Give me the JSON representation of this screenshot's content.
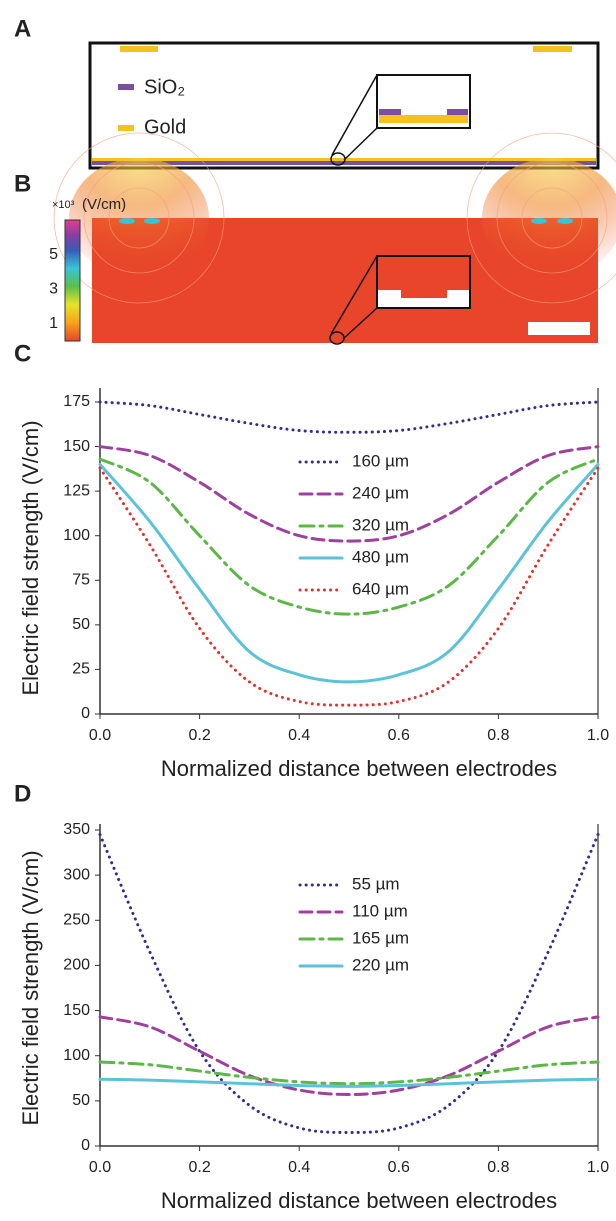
{
  "figure": {
    "panel_labels": [
      "A",
      "B",
      "C",
      "D"
    ],
    "panel_a": {
      "legend": [
        "SiO₂",
        "Gold"
      ]
    },
    "panel_b": {
      "colorbar_scale": "×10³",
      "colorbar_unit": "(V/cm)",
      "colorbar_lim": [
        0,
        7
      ],
      "colorbar_ticks": [
        1,
        3,
        5
      ]
    }
  },
  "chart_data": [
    {
      "type": "line",
      "xlabel": "Normalized distance between electrodes",
      "ylabel": "Electric field strength (V/cm)",
      "x": [
        0,
        0.1,
        0.2,
        0.3,
        0.4,
        0.5,
        0.6,
        0.7,
        0.8,
        0.9,
        1
      ],
      "xlim": [
        0,
        1
      ],
      "xticks": [
        {
          "value": 0,
          "label": "0.0"
        },
        0.2,
        0.4,
        0.6,
        0.8,
        {
          "value": 1,
          "label": "1.0"
        }
      ],
      "ylim": [
        0,
        175
      ],
      "yticks": [
        0,
        25,
        50,
        75,
        100,
        125,
        150,
        175
      ],
      "series": [
        {
          "name": "160 µm",
          "color": "#2e2f8f",
          "dash": "dotted",
          "values": [
            175,
            173,
            168,
            163,
            159,
            158,
            159,
            163,
            168,
            173,
            175
          ]
        },
        {
          "name": "240 µm",
          "color": "#a0409e",
          "dash": "dashed",
          "values": [
            150,
            145,
            130,
            112,
            100,
            97,
            100,
            112,
            130,
            145,
            150
          ]
        },
        {
          "name": "320 µm",
          "color": "#5cb846",
          "dash": "dashdot",
          "values": [
            143,
            130,
            100,
            72,
            60,
            56,
            60,
            72,
            100,
            130,
            143
          ]
        },
        {
          "name": "480 µm",
          "color": "#5bc2d8",
          "dash": "solid",
          "values": [
            140,
            108,
            70,
            35,
            22,
            18,
            22,
            35,
            70,
            108,
            140
          ]
        },
        {
          "name": "640 µm",
          "color": "#e2322c",
          "dash": "dotted",
          "values": [
            138,
            95,
            48,
            18,
            7,
            5,
            7,
            18,
            48,
            95,
            138
          ]
        }
      ]
    },
    {
      "type": "line",
      "xlabel": "Normalized distance between electrodes",
      "ylabel": "Electric field strength (V/cm)",
      "x": [
        0,
        0.1,
        0.2,
        0.3,
        0.4,
        0.5,
        0.6,
        0.7,
        0.8,
        0.9,
        1
      ],
      "xlim": [
        0,
        1
      ],
      "xticks": [
        {
          "value": 0,
          "label": "0.0"
        },
        0.2,
        0.4,
        0.6,
        0.8,
        {
          "value": 1,
          "label": "1.0"
        }
      ],
      "ylim": [
        0,
        350
      ],
      "yticks": [
        0,
        50,
        100,
        150,
        200,
        250,
        300,
        350
      ],
      "series": [
        {
          "name": "55 µm",
          "color": "#2e2f8f",
          "dash": "dotted",
          "values": [
            345,
            215,
            105,
            45,
            20,
            15,
            20,
            45,
            105,
            215,
            345
          ]
        },
        {
          "name": "110 µm",
          "color": "#a0409e",
          "dash": "dashed",
          "values": [
            143,
            132,
            105,
            78,
            62,
            57,
            62,
            78,
            105,
            132,
            143
          ]
        },
        {
          "name": "165 µm",
          "color": "#5cb846",
          "dash": "dashdot",
          "values": [
            93,
            90,
            83,
            76,
            71,
            69,
            71,
            76,
            83,
            90,
            93
          ]
        },
        {
          "name": "220 µm",
          "color": "#5bc2d8",
          "dash": "solid",
          "values": [
            74,
            73,
            71,
            69,
            67,
            66,
            67,
            69,
            71,
            73,
            74
          ]
        }
      ]
    }
  ]
}
